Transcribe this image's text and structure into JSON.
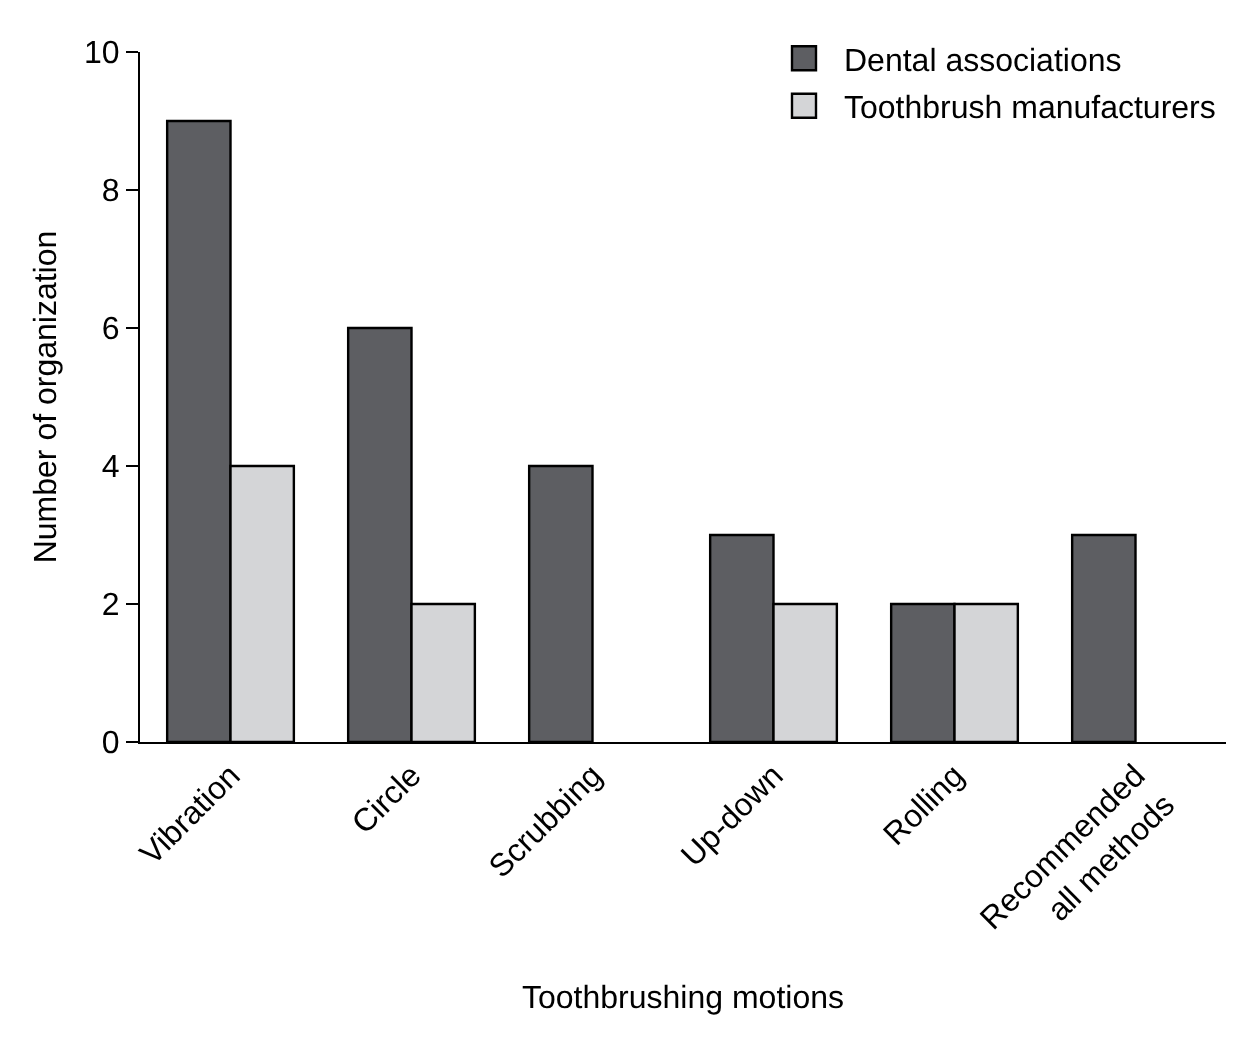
{
  "chart_data": {
    "type": "bar",
    "xlabel": "Toothbrushing motions",
    "ylabel": "Number of organization",
    "categories": [
      "Vibration",
      "Circle",
      "Scrubbing",
      "Up-down",
      "Rolling",
      "Recommended\nall methods"
    ],
    "series": [
      {
        "name": "Dental associations",
        "color": "#5d5e62",
        "values": [
          9,
          6,
          4,
          3,
          2,
          3
        ]
      },
      {
        "name": "Toothbrush manufacturers",
        "color": "#d4d5d7",
        "values": [
          4,
          2,
          null,
          2,
          2,
          null
        ]
      }
    ],
    "ylim": [
      0,
      10
    ],
    "yticks": [
      0,
      2,
      4,
      6,
      8,
      10
    ],
    "grid": false,
    "legend": "top right"
  }
}
